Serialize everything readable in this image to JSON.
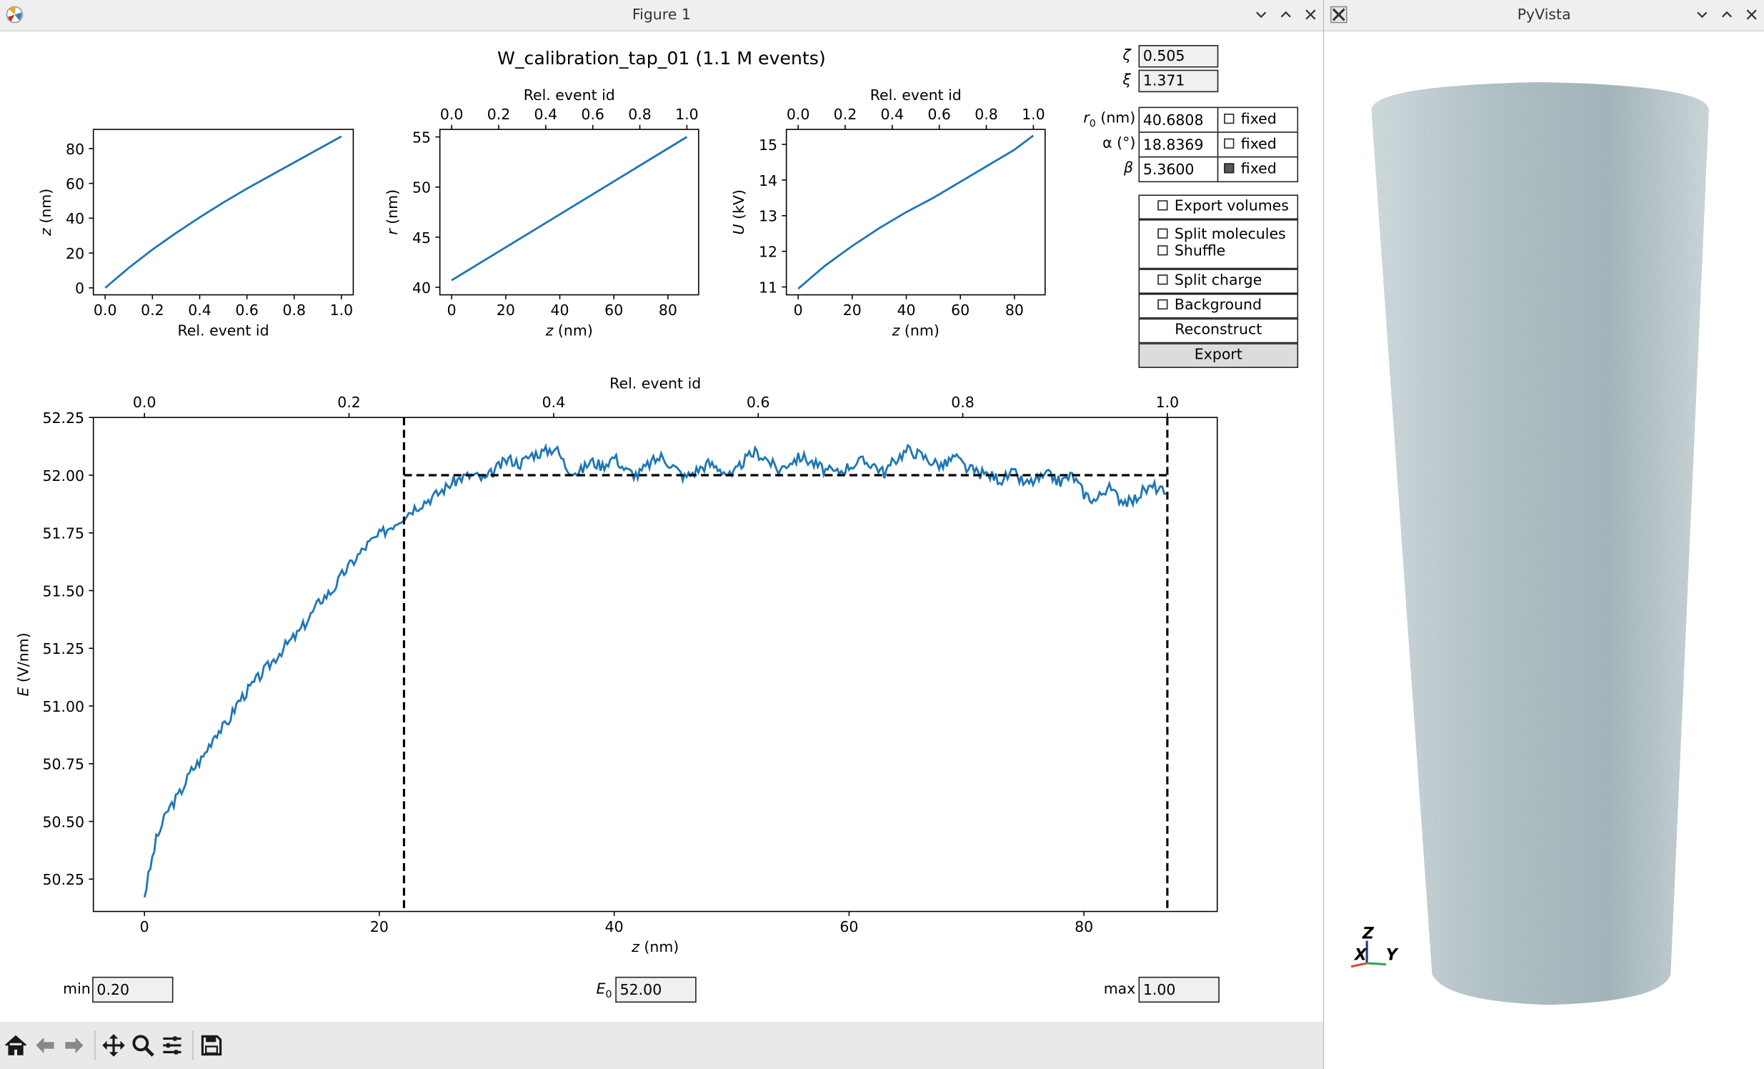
{
  "figure_window": {
    "title": "Figure 1",
    "suptitle": "W_calibration_tap_01 (1.1 M events)"
  },
  "pyvista_window": {
    "title": "PyVista",
    "axes_labels": {
      "z": "Z",
      "x": "X",
      "y": "Y"
    }
  },
  "params": {
    "zeta": {
      "label": "ζ",
      "value": "0.505"
    },
    "xi": {
      "label": "ξ",
      "value": "1.371"
    },
    "r0": {
      "label_main": "r",
      "label_sub": "0",
      "label_rest": " (nm)",
      "value": "40.6808",
      "checkbox": "fixed",
      "checked": false
    },
    "alpha": {
      "label": "α (°)",
      "value": "18.8369",
      "checkbox": "fixed",
      "checked": false
    },
    "beta": {
      "label": "β",
      "value": "5.3600",
      "checkbox": "fixed",
      "checked": true
    }
  },
  "options": {
    "export_volumes": "Export volumes",
    "split_molecules": "Split molecules",
    "shuffle": "Shuffle",
    "split_charge": "Split charge",
    "background": "Background",
    "reconstruct": "Reconstruct",
    "export": "Export"
  },
  "bottom_fields": {
    "min_label": "min",
    "min_value": "0.20",
    "e0_label": "E",
    "e0_sub": "0",
    "e0_value": "52.00",
    "max_label": "max",
    "max_value": "1.00"
  },
  "toolbar": [
    "home-icon",
    "back-icon",
    "forward-icon",
    "pan-icon",
    "zoom-icon",
    "configure-icon",
    "save-icon"
  ],
  "chart_data": [
    {
      "type": "line",
      "xlabel": "Rel. event id",
      "ylabel": "z (nm)",
      "xlim": [
        0,
        1
      ],
      "ylim": [
        0,
        87
      ],
      "xticks": [
        "0.0",
        "0.2",
        "0.4",
        "0.6",
        "0.8",
        "1.0"
      ],
      "yticks": [
        "0",
        "20",
        "40",
        "60",
        "80"
      ],
      "x": [
        0,
        0.1,
        0.2,
        0.3,
        0.4,
        0.5,
        0.6,
        0.7,
        0.8,
        0.9,
        1.0
      ],
      "y": [
        0,
        11.5,
        22,
        31.5,
        40.5,
        49,
        57,
        64.5,
        72,
        79.5,
        87
      ],
      "color": "#1f77b4"
    },
    {
      "type": "line",
      "xlabel": "z (nm)",
      "ylabel": "r (nm)",
      "top_xlabel": "Rel. event id",
      "top_xticks": [
        "0.0",
        "0.2",
        "0.4",
        "0.6",
        "0.8",
        "1.0"
      ],
      "xlim": [
        0,
        87
      ],
      "ylim": [
        40,
        55
      ],
      "xticks": [
        "0",
        "20",
        "40",
        "60",
        "80"
      ],
      "yticks": [
        "40",
        "45",
        "50",
        "55"
      ],
      "x": [
        0,
        87
      ],
      "y": [
        40.7,
        55.0
      ],
      "color": "#1f77b4"
    },
    {
      "type": "line",
      "xlabel": "z (nm)",
      "ylabel": "U (kV)",
      "top_xlabel": "Rel. event id",
      "top_xticks": [
        "0.0",
        "0.2",
        "0.4",
        "0.6",
        "0.8",
        "1.0"
      ],
      "xlim": [
        0,
        87
      ],
      "ylim": [
        11,
        15
      ],
      "xticks": [
        "0",
        "20",
        "40",
        "60",
        "80"
      ],
      "yticks": [
        "11",
        "12",
        "13",
        "14",
        "15"
      ],
      "x": [
        0,
        10,
        20,
        30,
        40,
        50,
        60,
        70,
        80,
        87
      ],
      "y": [
        10.95,
        11.6,
        12.15,
        12.65,
        13.1,
        13.5,
        13.95,
        14.4,
        14.85,
        15.25
      ],
      "color": "#1f77b4"
    },
    {
      "type": "line",
      "xlabel": "z (nm)",
      "ylabel": "E (V/nm)",
      "top_xlabel": "Rel. event id",
      "top_xticks": [
        "0.0",
        "0.2",
        "0.4",
        "0.6",
        "0.8",
        "1.0"
      ],
      "xlim": [
        0,
        87
      ],
      "ylim": [
        50.25,
        52.25
      ],
      "xticks": [
        "0",
        "20",
        "40",
        "60",
        "80"
      ],
      "yticks": [
        "50.25",
        "50.50",
        "50.75",
        "51.00",
        "51.25",
        "51.50",
        "51.75",
        "52.00",
        "52.25"
      ],
      "x": [
        0,
        1,
        2,
        3,
        4,
        5,
        6,
        7,
        8,
        9,
        10,
        11,
        12,
        13,
        14,
        15,
        16,
        17,
        18,
        19,
        20,
        21,
        22,
        23,
        24,
        25,
        26,
        27,
        28,
        29,
        30,
        31,
        32,
        33,
        34,
        35,
        36,
        37,
        38,
        39,
        40,
        41,
        42,
        43,
        44,
        45,
        46,
        47,
        48,
        49,
        50,
        51,
        52,
        53,
        54,
        55,
        56,
        57,
        58,
        59,
        60,
        61,
        62,
        63,
        64,
        65,
        66,
        67,
        68,
        69,
        70,
        71,
        72,
        73,
        74,
        75,
        76,
        77,
        78,
        79,
        80,
        81,
        82,
        83,
        84,
        85,
        86,
        87
      ],
      "y": [
        50.18,
        50.42,
        50.55,
        50.62,
        50.72,
        50.78,
        50.88,
        50.92,
        51.02,
        51.08,
        51.14,
        51.2,
        51.26,
        51.31,
        51.38,
        51.46,
        51.5,
        51.58,
        51.64,
        51.7,
        51.74,
        51.78,
        51.82,
        51.86,
        51.89,
        51.92,
        51.96,
        51.99,
        52.0,
        51.98,
        52.03,
        52.07,
        52.05,
        52.09,
        52.1,
        52.12,
        52.03,
        52.01,
        52.06,
        52.04,
        52.08,
        52.02,
        52.0,
        52.05,
        52.08,
        52.04,
        51.99,
        52.02,
        52.05,
        52.03,
        51.99,
        52.06,
        52.1,
        52.07,
        52.02,
        52.06,
        52.08,
        52.05,
        52.02,
        52.01,
        52.04,
        52.06,
        52.05,
        52.01,
        52.07,
        52.11,
        52.09,
        52.06,
        52.04,
        52.08,
        52.03,
        52.01,
        52.0,
        51.98,
        52.01,
        51.96,
        51.98,
        52.0,
        51.97,
        52.0,
        51.92,
        51.89,
        51.95,
        51.9,
        51.88,
        51.93,
        51.95,
        51.92
      ],
      "reference_line_y": 52.0,
      "vlines_x": [
        22.1,
        87.1
      ],
      "color": "#1f77b4"
    }
  ]
}
